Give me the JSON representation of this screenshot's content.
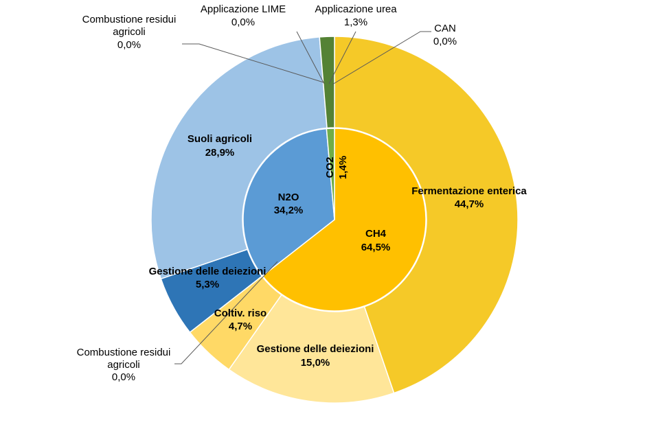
{
  "chart_data": {
    "type": "pie",
    "subtype": "double-doughnut",
    "title": "",
    "inner_ring": [
      {
        "label": "CH4",
        "value_label": "64,5%",
        "value": 64.5,
        "color": "#ffc000"
      },
      {
        "label": "N2O",
        "value_label": "34,2%",
        "value": 34.2,
        "color": "#5b9bd5"
      },
      {
        "label": "CO2",
        "value_label": "1,4%",
        "value": 1.4,
        "color": "#70ad47"
      }
    ],
    "outer_ring": [
      {
        "label": "Fermentazione enterica",
        "value_label": "44,7%",
        "value": 44.7,
        "parent": "CH4",
        "color": "#f5c928"
      },
      {
        "label": "Gestione delle deiezioni",
        "value_label": "15,0%",
        "value": 15.0,
        "parent": "CH4",
        "color": "#ffe699"
      },
      {
        "label": "Coltiv. riso",
        "value_label": "4,7%",
        "value": 4.7,
        "parent": "CH4",
        "color": "#ffd966"
      },
      {
        "label": "Combustione residui agricoli",
        "value_label": "0,0%",
        "value": 0.0,
        "parent": "CH4",
        "color": "#ffd966"
      },
      {
        "label": "Gestione delle deiezioni",
        "value_label": "5,3%",
        "value": 5.3,
        "parent": "N2O",
        "color": "#2e75b6"
      },
      {
        "label": "Suoli agricoli",
        "value_label": "28,9%",
        "value": 28.9,
        "parent": "N2O",
        "color": "#9dc3e6"
      },
      {
        "label": "Combustione residui agricoli",
        "value_label": "0,0%",
        "value": 0.0,
        "parent": "N2O",
        "color": "#9dc3e6"
      },
      {
        "label": "Applicazione LIME",
        "value_label": "0,0%",
        "value": 0.0,
        "parent": "CO2",
        "color": "#548235"
      },
      {
        "label": "Applicazione urea",
        "value_label": "1,3%",
        "value": 1.3,
        "parent": "CO2",
        "color": "#548235"
      },
      {
        "label": "CAN",
        "value_label": "0,0%",
        "value": 0.0,
        "parent": "CO2",
        "color": "#548235"
      }
    ],
    "labels": {
      "ferm_name": "Fermentazione enterica",
      "ferm_val": "44,7%",
      "gest15_name": "Gestione delle deiezioni",
      "gest15_val": "15,0%",
      "riso_name": "Coltiv. riso",
      "riso_val": "4,7%",
      "comb_ch4_line1": "Combustione residui",
      "comb_ch4_line2": "agricoli",
      "comb_ch4_val": "0,0%",
      "gest5_name": "Gestione delle deiezioni",
      "gest5_val": "5,3%",
      "suoli_name": "Suoli agricoli",
      "suoli_val": "28,9%",
      "comb_n2o_line1": "Combustione residui",
      "comb_n2o_line2": "agricoli",
      "comb_n2o_val": "0,0%",
      "lime_name": "Applicazione LIME",
      "lime_val": "0,0%",
      "urea_name": "Applicazione urea",
      "urea_val": "1,3%",
      "can_name": "CAN",
      "can_val": "0,0%",
      "ch4_name": "CH4",
      "ch4_val": "64,5%",
      "n2o_name": "N2O",
      "n2o_val": "34,2%",
      "co2_name": "CO2",
      "co2_val": "1,4%"
    }
  }
}
